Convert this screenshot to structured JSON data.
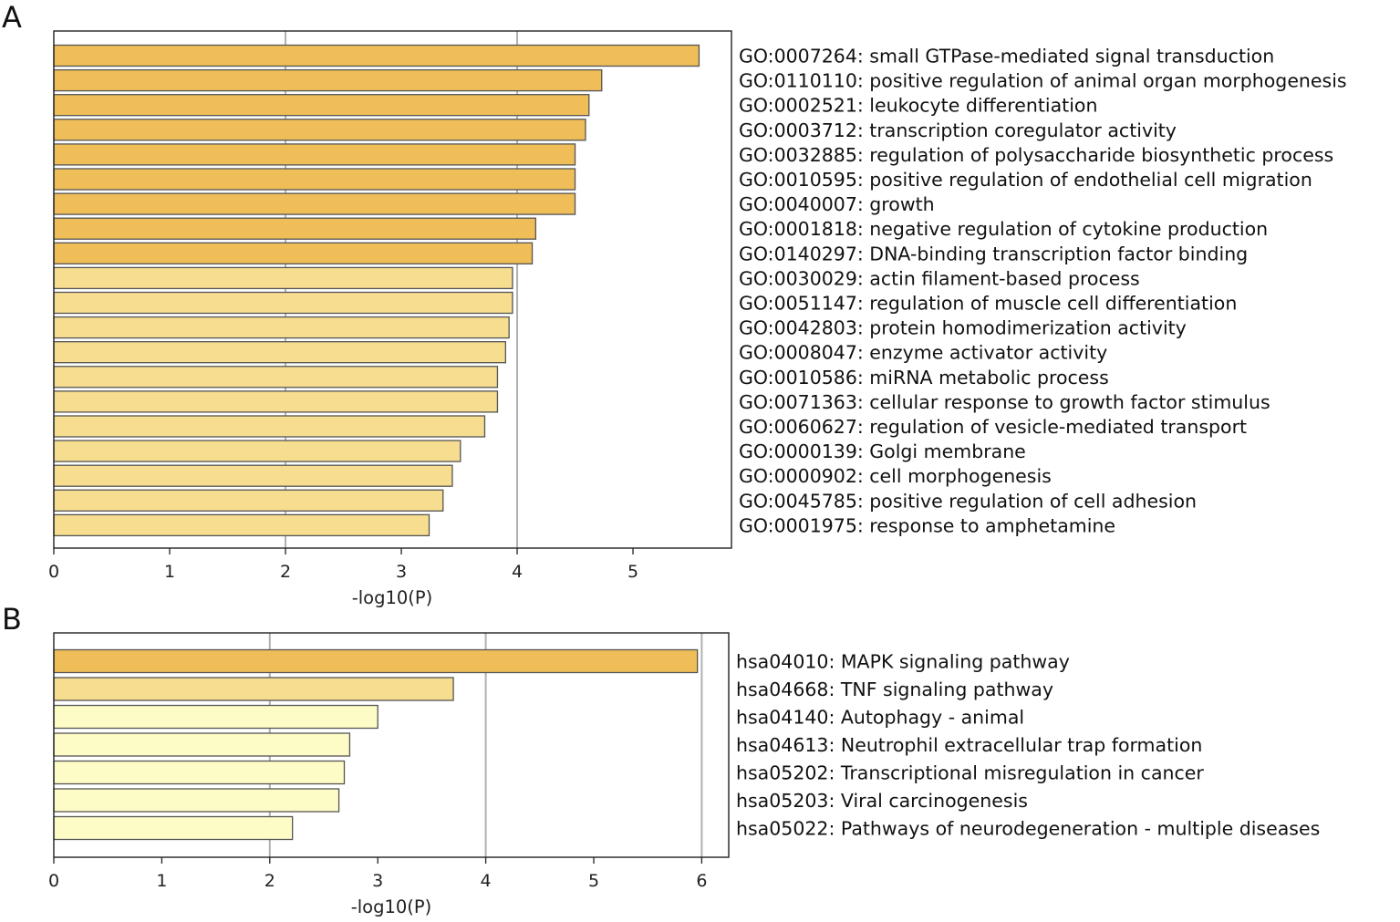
{
  "colors": {
    "deep": "#efbe58",
    "mid": "#f6dd8f",
    "light": "#fdfcc6",
    "grid": "#b0b0b0",
    "edge": "#555555"
  },
  "chart_data": [
    {
      "type": "bar",
      "orientation": "horizontal",
      "panel_label": "A",
      "xlabel": "-log10(P)",
      "xlim": [
        0,
        5.85
      ],
      "xticks": [
        0,
        1,
        2,
        3,
        4,
        5
      ],
      "gridlines": [
        2,
        4
      ],
      "categories": [
        "GO:0007264: small GTPase-mediated signal transduction",
        "GO:0110110: positive regulation of animal organ morphogenesis",
        "GO:0002521: leukocyte differentiation",
        "GO:0003712: transcription coregulator activity",
        "GO:0032885: regulation of polysaccharide biosynthetic process",
        "GO:0010595: positive regulation of endothelial cell migration",
        "GO:0040007: growth",
        "GO:0001818: negative regulation of cytokine production",
        "GO:0140297: DNA-binding transcription factor binding",
        "GO:0030029: actin filament-based process",
        "GO:0051147: regulation of muscle cell differentiation",
        "GO:0042803: protein homodimerization activity",
        "GO:0008047: enzyme activator activity",
        "GO:0010586: miRNA metabolic process",
        "GO:0071363: cellular response to growth factor stimulus",
        "GO:0060627: regulation of vesicle-mediated transport",
        "GO:0000139: Golgi membrane",
        "GO:0000902: cell morphogenesis",
        "GO:0045785: positive regulation of cell adhesion",
        "GO:0001975: response to amphetamine"
      ],
      "values": [
        5.57,
        4.73,
        4.62,
        4.59,
        4.5,
        4.5,
        4.5,
        4.16,
        4.13,
        3.96,
        3.96,
        3.93,
        3.9,
        3.83,
        3.83,
        3.72,
        3.51,
        3.44,
        3.36,
        3.24
      ],
      "color_class": [
        "deep",
        "deep",
        "deep",
        "deep",
        "deep",
        "deep",
        "deep",
        "deep",
        "deep",
        "mid",
        "mid",
        "mid",
        "mid",
        "mid",
        "mid",
        "mid",
        "mid",
        "mid",
        "mid",
        "mid"
      ]
    },
    {
      "type": "bar",
      "orientation": "horizontal",
      "panel_label": "B",
      "xlabel": "-log10(P)",
      "xlim": [
        0,
        6.25
      ],
      "xticks": [
        0,
        1,
        2,
        3,
        4,
        5,
        6
      ],
      "gridlines": [
        2,
        4,
        6
      ],
      "categories": [
        "hsa04010: MAPK signaling pathway",
        "hsa04668: TNF signaling pathway",
        "hsa04140: Autophagy - animal",
        "hsa04613: Neutrophil extracellular trap formation",
        "hsa05202: Transcriptional misregulation in cancer",
        "hsa05203: Viral carcinogenesis",
        "hsa05022: Pathways of neurodegeneration - multiple diseases"
      ],
      "values": [
        5.96,
        3.7,
        3.0,
        2.74,
        2.69,
        2.64,
        2.21
      ],
      "color_class": [
        "deep",
        "mid",
        "light",
        "light",
        "light",
        "light",
        "light"
      ]
    }
  ]
}
